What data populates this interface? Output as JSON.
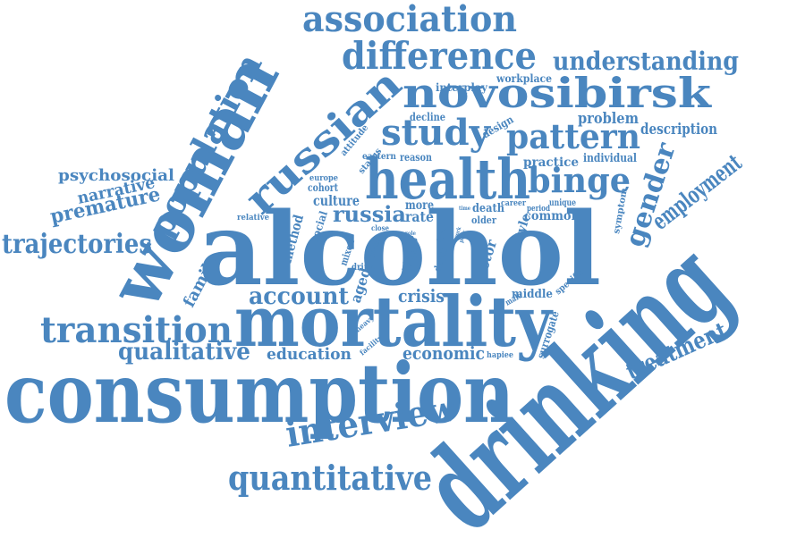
{
  "color": "#4a86bf",
  "words": [
    "drinking",
    "alcohol",
    "consumption",
    "mortality",
    "woman",
    "health",
    "russian",
    "novosibirsk",
    "association",
    "difference",
    "population",
    "study",
    "interview",
    "pattern",
    "quantitative",
    "transition",
    "binge",
    "understanding",
    "gender",
    "employment",
    "trajectories",
    "russia",
    "treatment",
    "account",
    "qualitative",
    "premature",
    "psychosocial",
    "narrative",
    "economic",
    "crisis",
    "education",
    "family",
    "description",
    "problem",
    "practice",
    "individual",
    "culture",
    "common",
    "method",
    "factor",
    "style",
    "rate",
    "more",
    "death",
    "aged",
    "social",
    "middle",
    "surrogate",
    "interplay",
    "workplace",
    "decline",
    "design",
    "reason",
    "eastern",
    "attitude",
    "status",
    "europe",
    "cohort",
    "relative",
    "mixed",
    "data",
    "drink",
    "close",
    "life",
    "city",
    "year",
    "main",
    "third",
    "depth",
    "fatal",
    "older",
    "career",
    "unique",
    "period",
    "symptom",
    "specific",
    "male",
    "heavy",
    "facility",
    "hapiee",
    "work",
    "poor",
    "role",
    "time"
  ]
}
